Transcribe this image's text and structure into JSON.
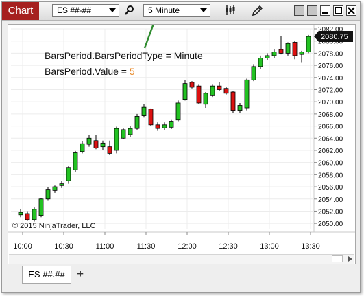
{
  "toolbar": {
    "chart_title": "Chart",
    "instrument": "ES ##-##",
    "period": "5 Minute"
  },
  "annotation": {
    "line1": "BarsPeriod.BarsPeriodType = Minute",
    "line2_prefix": "BarsPeriod.Value = ",
    "line2_value": "5",
    "value_color": "#e8892a",
    "arrow_color": "#2e8b2e"
  },
  "copyright": "© 2015 NinjaTrader, LLC",
  "last_price": "2080.75",
  "colors": {
    "up": "#22c222",
    "down": "#dd1111"
  },
  "tab": {
    "label": "ES ##.##",
    "add_label": "+"
  },
  "chart_data": {
    "type": "candlestick",
    "ylim": [
      2049,
      2082
    ],
    "y_ticks": [
      "2082.00",
      "2080.00",
      "2078.00",
      "2076.00",
      "2074.00",
      "2072.00",
      "2070.00",
      "2068.00",
      "2066.00",
      "2064.00",
      "2062.00",
      "2060.00",
      "2058.00",
      "2056.00",
      "2054.00",
      "2052.00",
      "2050.00"
    ],
    "x_ticks": [
      "10:00",
      "10:30",
      "11:00",
      "11:30",
      "12:00",
      "12:30",
      "13:00",
      "13:30"
    ],
    "grid": true,
    "bars": [
      {
        "o": 2051.4,
        "h": 2052.3,
        "l": 2051.0,
        "c": 2051.8
      },
      {
        "o": 2051.6,
        "h": 2052.0,
        "l": 2050.4,
        "c": 2050.6
      },
      {
        "o": 2050.6,
        "h": 2052.6,
        "l": 2050.3,
        "c": 2052.3
      },
      {
        "o": 2051.3,
        "h": 2054.2,
        "l": 2051.0,
        "c": 2054.0
      },
      {
        "o": 2054.0,
        "h": 2055.9,
        "l": 2053.8,
        "c": 2055.6
      },
      {
        "o": 2055.4,
        "h": 2056.2,
        "l": 2055.0,
        "c": 2056.0
      },
      {
        "o": 2056.2,
        "h": 2057.0,
        "l": 2055.8,
        "c": 2056.5
      },
      {
        "o": 2057.0,
        "h": 2059.5,
        "l": 2056.5,
        "c": 2059.2
      },
      {
        "o": 2058.8,
        "h": 2061.9,
        "l": 2058.5,
        "c": 2061.6
      },
      {
        "o": 2061.8,
        "h": 2063.5,
        "l": 2061.5,
        "c": 2063.1
      },
      {
        "o": 2063.0,
        "h": 2064.5,
        "l": 2062.6,
        "c": 2064.0
      },
      {
        "o": 2063.6,
        "h": 2064.5,
        "l": 2062.2,
        "c": 2062.4
      },
      {
        "o": 2062.6,
        "h": 2063.6,
        "l": 2062.0,
        "c": 2063.2
      },
      {
        "o": 2062.6,
        "h": 2063.6,
        "l": 2061.2,
        "c": 2061.5
      },
      {
        "o": 2062.0,
        "h": 2065.9,
        "l": 2061.5,
        "c": 2065.6
      },
      {
        "o": 2064.0,
        "h": 2065.6,
        "l": 2063.8,
        "c": 2065.4
      },
      {
        "o": 2064.6,
        "h": 2066.0,
        "l": 2064.2,
        "c": 2065.6
      },
      {
        "o": 2065.6,
        "h": 2068.0,
        "l": 2065.4,
        "c": 2067.6
      },
      {
        "o": 2067.7,
        "h": 2069.6,
        "l": 2067.4,
        "c": 2069.1
      },
      {
        "o": 2068.8,
        "h": 2068.9,
        "l": 2066.0,
        "c": 2066.2
      },
      {
        "o": 2066.2,
        "h": 2066.6,
        "l": 2065.2,
        "c": 2065.6
      },
      {
        "o": 2065.7,
        "h": 2066.6,
        "l": 2065.3,
        "c": 2066.2
      },
      {
        "o": 2065.8,
        "h": 2067.0,
        "l": 2065.5,
        "c": 2066.8
      },
      {
        "o": 2067.0,
        "h": 2070.2,
        "l": 2066.8,
        "c": 2069.8
      },
      {
        "o": 2070.4,
        "h": 2073.6,
        "l": 2070.2,
        "c": 2073.0
      },
      {
        "o": 2073.2,
        "h": 2073.4,
        "l": 2072.2,
        "c": 2072.4
      },
      {
        "o": 2072.6,
        "h": 2072.8,
        "l": 2069.6,
        "c": 2069.8
      },
      {
        "o": 2069.6,
        "h": 2071.6,
        "l": 2069.0,
        "c": 2071.4
      },
      {
        "o": 2071.0,
        "h": 2072.8,
        "l": 2070.8,
        "c": 2072.6
      },
      {
        "o": 2072.6,
        "h": 2073.2,
        "l": 2071.8,
        "c": 2072.0
      },
      {
        "o": 2072.2,
        "h": 2072.4,
        "l": 2071.2,
        "c": 2071.4
      },
      {
        "o": 2071.6,
        "h": 2071.8,
        "l": 2068.2,
        "c": 2068.6
      },
      {
        "o": 2068.6,
        "h": 2069.8,
        "l": 2068.2,
        "c": 2069.4
      },
      {
        "o": 2069.0,
        "h": 2073.8,
        "l": 2068.6,
        "c": 2073.6
      },
      {
        "o": 2073.6,
        "h": 2076.2,
        "l": 2073.4,
        "c": 2075.8
      },
      {
        "o": 2075.8,
        "h": 2077.6,
        "l": 2075.4,
        "c": 2077.2
      },
      {
        "o": 2077.2,
        "h": 2078.0,
        "l": 2076.8,
        "c": 2077.6
      },
      {
        "o": 2077.6,
        "h": 2078.6,
        "l": 2077.2,
        "c": 2078.2
      },
      {
        "o": 2078.6,
        "h": 2080.8,
        "l": 2077.8,
        "c": 2078.0
      },
      {
        "o": 2078.0,
        "h": 2079.8,
        "l": 2077.6,
        "c": 2079.6
      },
      {
        "o": 2079.8,
        "h": 2080.0,
        "l": 2077.0,
        "c": 2077.6
      },
      {
        "o": 2077.8,
        "h": 2078.4,
        "l": 2076.4,
        "c": 2078.2
      },
      {
        "o": 2078.2,
        "h": 2081.0,
        "l": 2078.0,
        "c": 2080.75
      }
    ]
  }
}
